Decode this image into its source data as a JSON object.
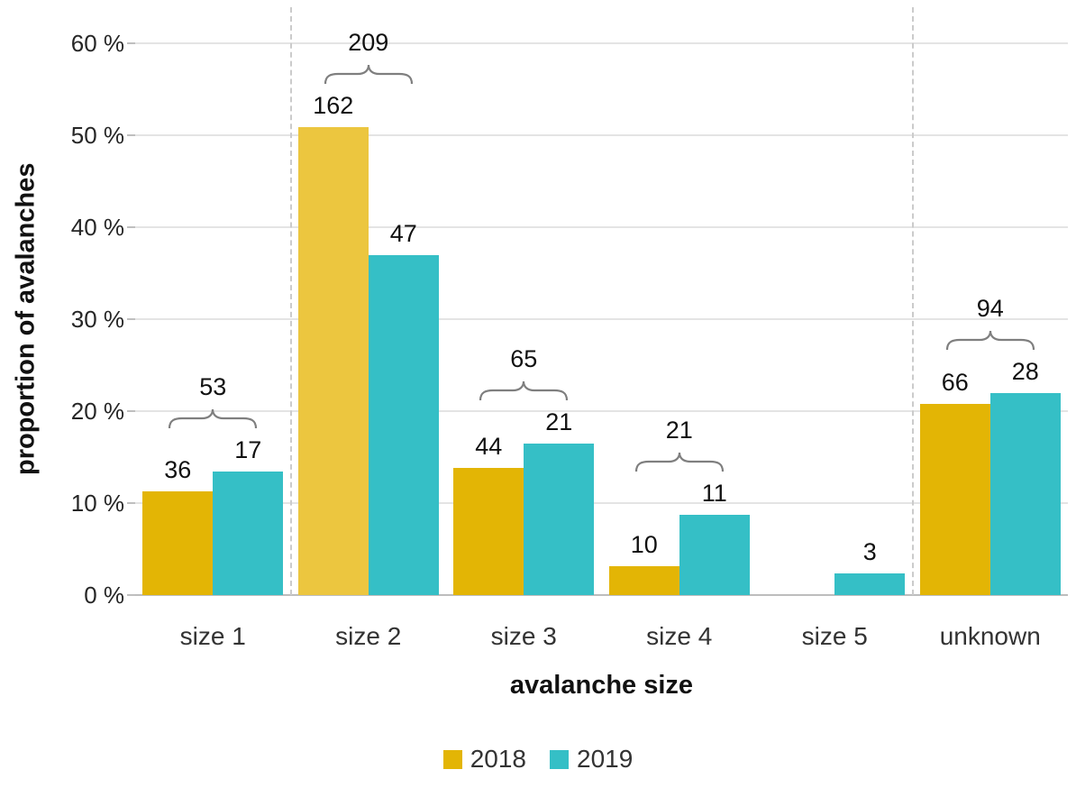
{
  "chart_data": {
    "type": "bar",
    "title": "",
    "xlabel": "avalanche size",
    "ylabel": "proportion of avalanches",
    "ylim": [
      0,
      60
    ],
    "ytick_step": 10,
    "ytick_suffix": " %",
    "grid": "horizontal",
    "legend_position": "bottom",
    "categories": [
      "size 1",
      "size 2",
      "size 3",
      "size 4",
      "size 5",
      "unknown"
    ],
    "series": [
      {
        "name": "2018",
        "color": "#E3B505",
        "counts": [
          36,
          162,
          44,
          10,
          null,
          66
        ],
        "values": [
          11.3,
          50.9,
          13.8,
          3.1,
          0,
          20.8
        ]
      },
      {
        "name": "2019",
        "color": "#35BFC6",
        "counts": [
          17,
          47,
          21,
          11,
          3,
          28
        ],
        "values": [
          13.4,
          37.0,
          16.5,
          8.7,
          2.4,
          22.0
        ]
      }
    ],
    "group_totals": [
      53,
      209,
      65,
      21,
      null,
      94
    ],
    "bar_color_overrides": {
      "s0c1": "#ECC63F"
    },
    "separators_after": [
      0,
      4
    ],
    "brace_color": "#7f7f7f"
  }
}
